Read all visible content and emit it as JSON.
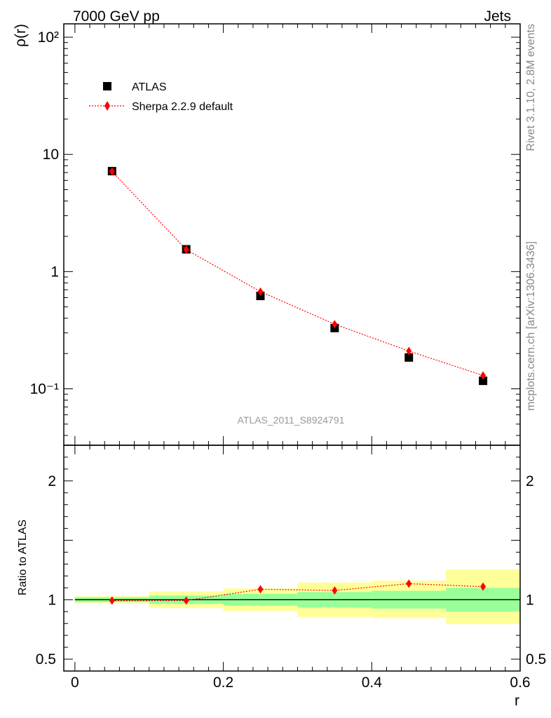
{
  "header": {
    "left": "7000 GeV pp",
    "right": "Jets"
  },
  "side_labels": {
    "rivet": "Rivet 3.1.10,  2.8M events",
    "source": "mcplots.cern.ch [arXiv:1306.3436]"
  },
  "analysis_id": "ATLAS_2011_S8924791",
  "colors": {
    "data": "#000000",
    "mc": "#ff0000",
    "band_inner": "#99ff99",
    "band_outer": "#ffff99"
  },
  "chart_data": [
    {
      "type": "scatter",
      "panel": "main",
      "ylabel": "ρ(r)",
      "yscale": "log",
      "xlim": [
        -0.015,
        0.6
      ],
      "ylim": [
        0.033,
        130
      ],
      "ytick_labels": [
        "10⁻¹",
        "1",
        "10",
        "10²"
      ],
      "legend": {
        "placement": "top-left",
        "entries": [
          "ATLAS",
          "Sherpa 2.2.9 default"
        ]
      },
      "x": [
        0.05,
        0.15,
        0.25,
        0.35,
        0.45,
        0.55
      ],
      "series": [
        {
          "name": "ATLAS",
          "marker": "square",
          "values": [
            7.2,
            1.55,
            0.62,
            0.33,
            0.185,
            0.117
          ]
        },
        {
          "name": "Sherpa 2.2.9 default",
          "marker": "diamond",
          "line": "dotted",
          "values": [
            7.15,
            1.54,
            0.675,
            0.356,
            0.21,
            0.13
          ]
        }
      ]
    },
    {
      "type": "line",
      "panel": "ratio",
      "ylabel": "Ratio to ATLAS",
      "xlabel": "r",
      "xlim": [
        -0.015,
        0.6
      ],
      "ylim": [
        0.4,
        2.3
      ],
      "xtick_labels": [
        "0",
        "0.2",
        "0.4",
        "0.6"
      ],
      "ytick_labels": [
        "0.5",
        "1",
        "2"
      ],
      "bin_edges": [
        0.0,
        0.1,
        0.2,
        0.3,
        0.4,
        0.5,
        0.6
      ],
      "x": [
        0.05,
        0.15,
        0.25,
        0.35,
        0.45,
        0.55
      ],
      "band_inner": {
        "low": [
          0.98,
          0.965,
          0.95,
          0.935,
          0.925,
          0.9
        ],
        "high": [
          1.02,
          1.035,
          1.05,
          1.065,
          1.075,
          1.1
        ]
      },
      "band_outer": {
        "low": [
          0.97,
          0.93,
          0.905,
          0.855,
          0.845,
          0.795
        ],
        "high": [
          1.03,
          1.07,
          1.095,
          1.145,
          1.16,
          1.255
        ]
      },
      "series": [
        {
          "name": "Sherpa 2.2.9 default",
          "values": [
            0.993,
            0.993,
            1.088,
            1.078,
            1.135,
            1.11
          ]
        }
      ]
    }
  ]
}
